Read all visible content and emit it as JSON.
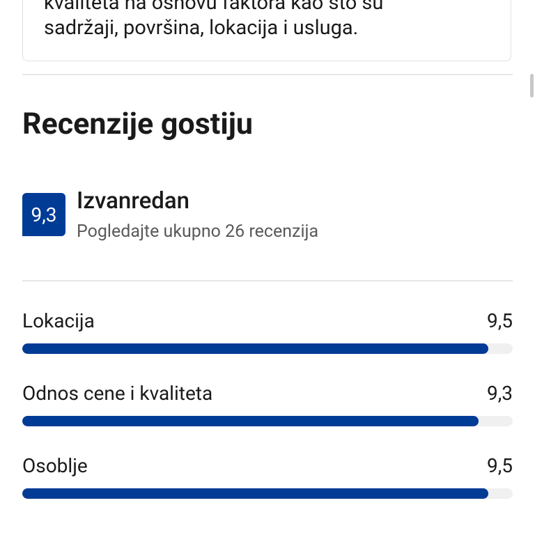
{
  "intro": {
    "lines": [
      "kvaliteta na osnovu faktora kao što su",
      "sadržaji, površina, lokacija i usluga."
    ]
  },
  "reviews": {
    "title": "Recenzije gostiju",
    "overall": {
      "score": {
        "value": 9.3,
        "label": "9,3"
      },
      "rating": "Izvanredan",
      "link": "Pogledajte ukupno 26 recenzija"
    },
    "xlim": [
      0,
      10
    ],
    "categories": [
      {
        "name": "Lokacija",
        "score": {
          "value": 9.5,
          "label": "9,5"
        }
      },
      {
        "name": "Odnos cene i kvaliteta",
        "score": {
          "value": 9.3,
          "label": "9,3"
        }
      },
      {
        "name": "Osoblje",
        "score": {
          "value": 9.5,
          "label": "9,5"
        }
      }
    ],
    "bar_color": "#003b95",
    "track_color": "#f0f0f0"
  }
}
